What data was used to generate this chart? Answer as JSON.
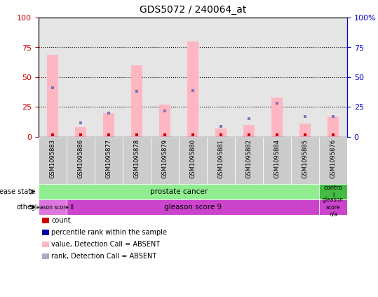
{
  "title": "GDS5072 / 240064_at",
  "samples": [
    "GSM1095883",
    "GSM1095886",
    "GSM1095877",
    "GSM1095878",
    "GSM1095879",
    "GSM1095880",
    "GSM1095881",
    "GSM1095882",
    "GSM1095884",
    "GSM1095885",
    "GSM1095876"
  ],
  "pink_bar_values": [
    69,
    8,
    20,
    60,
    27,
    80,
    7,
    10,
    33,
    11,
    17
  ],
  "blue_square_values": [
    41,
    12,
    20,
    38,
    22,
    39,
    9,
    15,
    28,
    17,
    17
  ],
  "ylim": [
    0,
    100
  ],
  "yticks": [
    0,
    25,
    50,
    75,
    100
  ],
  "grid_lines": [
    25,
    50,
    75
  ],
  "prostate_cancer_color": "#90EE90",
  "control_color": "#44BB44",
  "gleason8_color": "#DD77DD",
  "gleason9_color": "#CC44CC",
  "gleason_na_color": "#CC44CC",
  "col_bg_color": "#CCCCCC",
  "pink_bar_color": "#FFB6C1",
  "blue_sq_color": "#7777BB",
  "red_sq_color": "#CC0000",
  "left_axis_color": "#CC0000",
  "right_axis_color": "#0000CC",
  "legend_colors": [
    "#CC0000",
    "#0000AA",
    "#FFB6C1",
    "#AAAACC"
  ],
  "legend_labels": [
    "count",
    "percentile rank within the sample",
    "value, Detection Call = ABSENT",
    "rank, Detection Call = ABSENT"
  ]
}
